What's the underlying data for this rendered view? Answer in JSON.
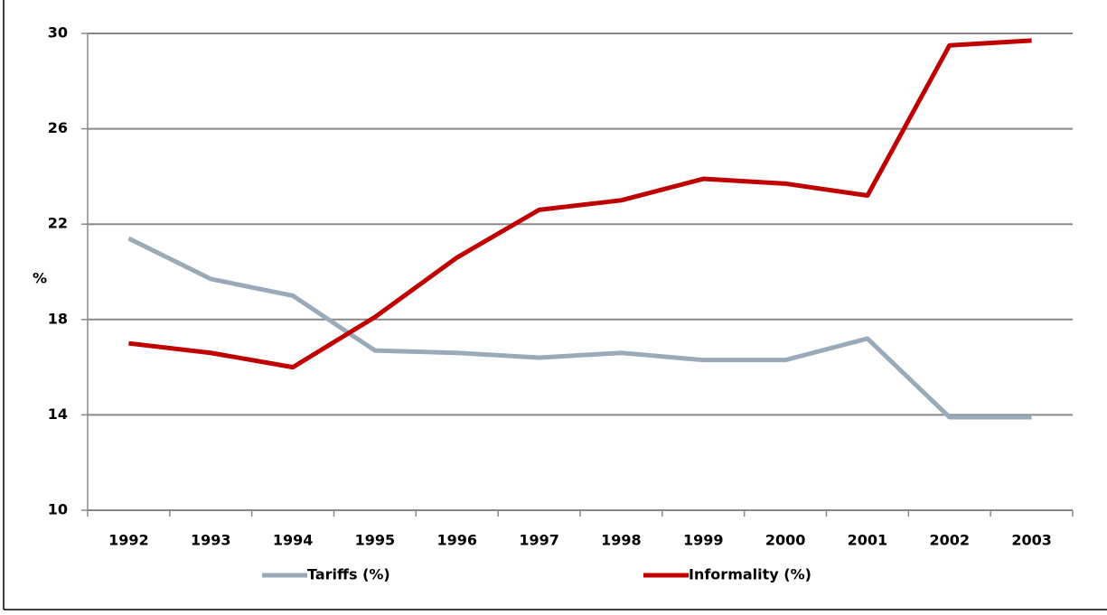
{
  "chart_data": {
    "type": "line",
    "y_label": "%",
    "categories": [
      "1992",
      "1993",
      "1994",
      "1995",
      "1996",
      "1997",
      "1998",
      "1999",
      "2000",
      "2001",
      "2002",
      "2003"
    ],
    "series": [
      {
        "name": "Tariffs (%)",
        "color": "#9aaab8",
        "values": [
          21.4,
          19.7,
          19.0,
          16.7,
          16.6,
          16.4,
          16.6,
          16.3,
          16.3,
          17.2,
          13.9,
          13.9
        ]
      },
      {
        "name": "Informality (%)",
        "color": "#c00000",
        "values": [
          17.0,
          16.6,
          16.0,
          18.1,
          20.6,
          22.6,
          23.0,
          23.9,
          23.7,
          23.2,
          29.5,
          29.7
        ]
      }
    ],
    "ylim": [
      10,
      30
    ],
    "yticks": [
      10,
      14,
      18,
      22,
      26,
      30
    ],
    "grid": true,
    "legend": "bottom"
  }
}
